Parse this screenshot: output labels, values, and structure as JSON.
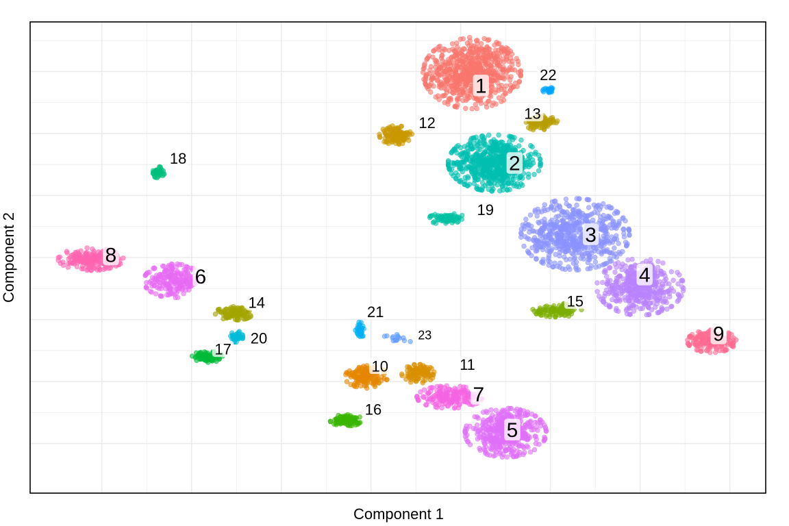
{
  "chart_data": {
    "type": "scatter",
    "title": "",
    "xlabel": "Component 1",
    "ylabel": "Component 2",
    "xlim": [
      0,
      16.4
    ],
    "ylim": [
      0,
      15.2
    ],
    "grid": true,
    "legend": "none",
    "clusters": [
      {
        "label": "1",
        "color": "#F8766D",
        "x": 9.85,
        "y": 13.55,
        "sx": 0.9,
        "sy": 0.95,
        "n": 700,
        "label_x": 10.05,
        "label_y": 13.15,
        "label_size": "large"
      },
      {
        "label": "2",
        "color": "#00BFB0",
        "x": 10.35,
        "y": 10.65,
        "sx": 0.85,
        "sy": 0.75,
        "n": 650,
        "label_x": 10.8,
        "label_y": 10.65,
        "label_size": "large"
      },
      {
        "label": "3",
        "color": "#8B93FF",
        "x": 12.15,
        "y": 8.35,
        "sx": 1.0,
        "sy": 0.95,
        "n": 650,
        "label_x": 12.5,
        "label_y": 8.35,
        "label_size": "large"
      },
      {
        "label": "4",
        "color": "#B983FF",
        "x": 13.6,
        "y": 6.65,
        "sx": 0.8,
        "sy": 0.75,
        "n": 450,
        "label_x": 13.7,
        "label_y": 7.05,
        "label_size": "large"
      },
      {
        "label": "5",
        "color": "#DF70F8",
        "x": 10.6,
        "y": 1.95,
        "sx": 0.75,
        "sy": 0.65,
        "n": 450,
        "label_x": 10.75,
        "label_y": 2.05,
        "label_size": "large"
      },
      {
        "label": "6",
        "color": "#E76BF3",
        "x": 3.2,
        "y": 6.85,
        "sx": 0.55,
        "sy": 0.45,
        "n": 220,
        "label_x": 3.8,
        "label_y": 7.0,
        "label_size": "large"
      },
      {
        "label": "7",
        "color": "#F564E3",
        "x": 9.35,
        "y": 3.1,
        "sx": 0.6,
        "sy": 0.3,
        "n": 180,
        "label_x": 10.0,
        "label_y": 3.2,
        "label_size": "large"
      },
      {
        "label": "8",
        "color": "#FF64B0",
        "x": 1.35,
        "y": 7.55,
        "sx": 0.6,
        "sy": 0.3,
        "n": 200,
        "label_x": 1.8,
        "label_y": 7.7,
        "label_size": "large"
      },
      {
        "label": "9",
        "color": "#FF6C91",
        "x": 15.2,
        "y": 4.9,
        "sx": 0.45,
        "sy": 0.3,
        "n": 200,
        "label_x": 15.35,
        "label_y": 5.15,
        "label_size": "large"
      },
      {
        "label": "10",
        "color": "#E58700",
        "x": 7.5,
        "y": 3.75,
        "sx": 0.4,
        "sy": 0.3,
        "n": 140,
        "label_x": 7.8,
        "label_y": 4.1,
        "label_size": "small"
      },
      {
        "label": "11",
        "color": "#D89000",
        "x": 8.65,
        "y": 3.85,
        "sx": 0.3,
        "sy": 0.25,
        "n": 100,
        "label_x": 9.75,
        "label_y": 4.15,
        "label_size": "small"
      },
      {
        "label": "12",
        "color": "#C99800",
        "x": 8.15,
        "y": 11.55,
        "sx": 0.3,
        "sy": 0.25,
        "n": 120,
        "label_x": 8.85,
        "label_y": 11.95,
        "label_size": "small"
      },
      {
        "label": "13",
        "color": "#B79F00",
        "x": 11.4,
        "y": 11.95,
        "sx": 0.3,
        "sy": 0.22,
        "n": 100,
        "label_x": 11.2,
        "label_y": 12.25,
        "label_size": "small"
      },
      {
        "label": "14",
        "color": "#A3A500",
        "x": 4.55,
        "y": 5.8,
        "sx": 0.35,
        "sy": 0.18,
        "n": 120,
        "label_x": 5.05,
        "label_y": 6.15,
        "label_size": "small"
      },
      {
        "label": "15",
        "color": "#7CAE00",
        "x": 11.75,
        "y": 5.9,
        "sx": 0.45,
        "sy": 0.18,
        "n": 100,
        "label_x": 12.15,
        "label_y": 6.2,
        "label_size": "small"
      },
      {
        "label": "16",
        "color": "#39B600",
        "x": 7.05,
        "y": 2.35,
        "sx": 0.3,
        "sy": 0.15,
        "n": 90,
        "label_x": 7.65,
        "label_y": 2.7,
        "label_size": "small"
      },
      {
        "label": "17",
        "color": "#00BA38",
        "x": 3.95,
        "y": 4.4,
        "sx": 0.28,
        "sy": 0.15,
        "n": 80,
        "label_x": 4.3,
        "label_y": 4.65,
        "label_size": "small"
      },
      {
        "label": "18",
        "color": "#00BF7D",
        "x": 2.85,
        "y": 10.35,
        "sx": 0.12,
        "sy": 0.15,
        "n": 50,
        "label_x": 3.3,
        "label_y": 10.8,
        "label_size": "small"
      },
      {
        "label": "19",
        "color": "#00C1A3",
        "x": 9.3,
        "y": 8.85,
        "sx": 0.35,
        "sy": 0.15,
        "n": 70,
        "label_x": 10.15,
        "label_y": 9.15,
        "label_size": "small"
      },
      {
        "label": "20",
        "color": "#00BCD8",
        "x": 4.6,
        "y": 5.05,
        "sx": 0.12,
        "sy": 0.15,
        "n": 40,
        "label_x": 5.1,
        "label_y": 5.0,
        "label_size": "small"
      },
      {
        "label": "21",
        "color": "#00B0F6",
        "x": 7.35,
        "y": 5.25,
        "sx": 0.08,
        "sy": 0.22,
        "n": 35,
        "label_x": 7.7,
        "label_y": 5.85,
        "label_size": "small"
      },
      {
        "label": "22",
        "color": "#00A5FF",
        "x": 11.55,
        "y": 13.0,
        "sx": 0.1,
        "sy": 0.08,
        "n": 25,
        "label_x": 11.55,
        "label_y": 13.5,
        "label_size": "small"
      },
      {
        "label": "23",
        "color": "#619CFF",
        "x": 8.2,
        "y": 5.0,
        "sx": 0.3,
        "sy": 0.15,
        "n": 15,
        "label_x": 8.8,
        "label_y": 5.1,
        "label_size": "tiny"
      }
    ]
  }
}
